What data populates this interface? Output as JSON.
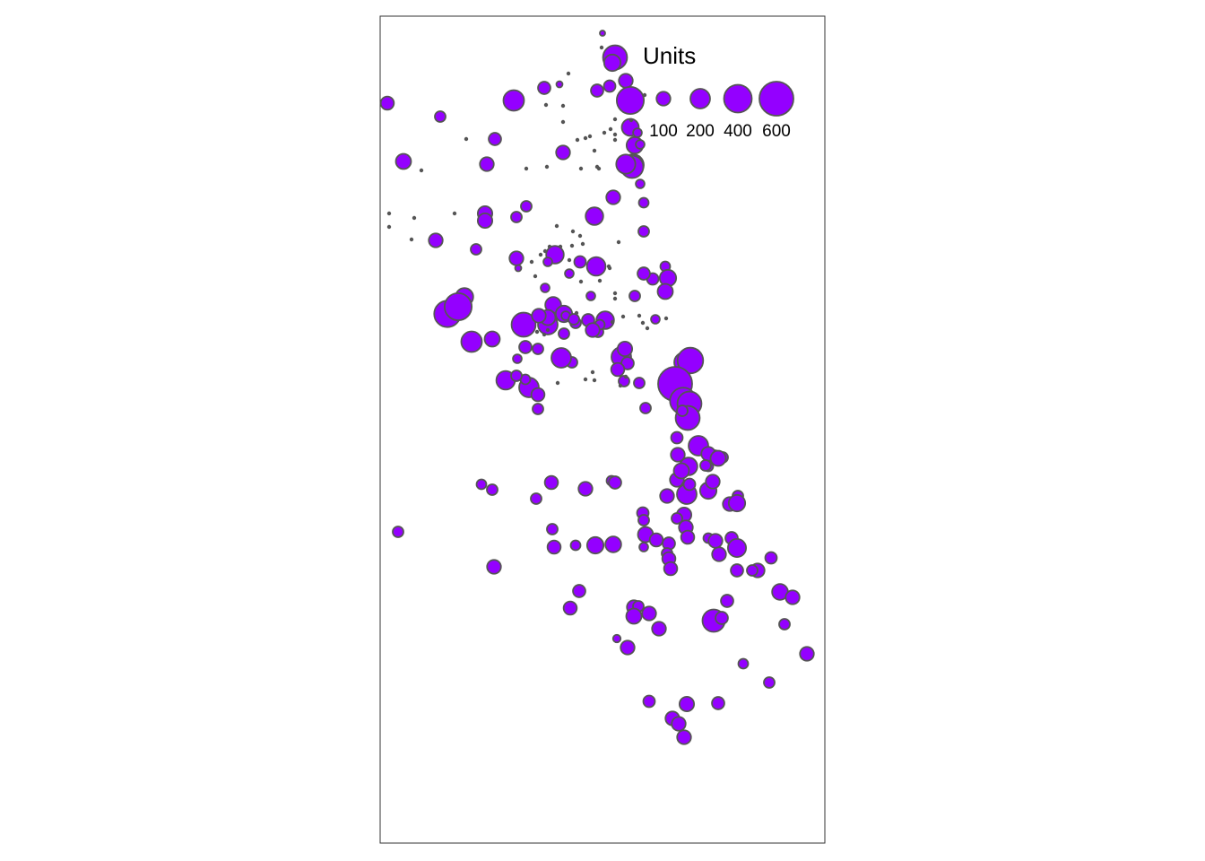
{
  "map": {
    "fill_color": "#9400FF",
    "stroke_color": "#555555",
    "frame_color": "#333333"
  },
  "legend": {
    "title": "Units",
    "entries": [
      {
        "label": "100",
        "value": 100
      },
      {
        "label": "200",
        "value": 200
      },
      {
        "label": "400",
        "value": 400
      },
      {
        "label": "600",
        "value": 600
      }
    ]
  },
  "chart_data": {
    "type": "proportional-symbol",
    "size_variable": "Units",
    "points": [
      {
        "u": 15
      },
      {
        "u": 300
      },
      {
        "u": 140
      },
      {
        "u": 100
      },
      {
        "u": 130
      },
      {
        "u": 5
      },
      {
        "u": 5
      },
      {
        "u": 200
      },
      {
        "u": 80
      },
      {
        "u": 20
      },
      {
        "u": 380
      },
      {
        "u": 150
      },
      {
        "u": 80
      },
      {
        "u": 70
      },
      {
        "u": 5
      },
      {
        "u": 5
      },
      {
        "u": 140
      },
      {
        "u": 40
      },
      {
        "u": 5
      },
      {
        "u": 5
      },
      {
        "u": 5
      },
      {
        "u": 5
      },
      {
        "u": 5
      },
      {
        "u": 240
      },
      {
        "u": 260
      },
      {
        "u": 100
      },
      {
        "u": 190
      },
      {
        "u": 40
      },
      {
        "u": 40
      },
      {
        "u": 90
      },
      {
        "u": 60
      },
      {
        "u": 5
      },
      {
        "u": 5
      },
      {
        "u": 5
      },
      {
        "u": 5
      },
      {
        "u": 220
      },
      {
        "u": 80
      },
      {
        "u": 5
      },
      {
        "u": 100
      },
      {
        "u": 5
      },
      {
        "u": 120
      },
      {
        "u": 5
      },
      {
        "u": 5
      },
      {
        "u": 5
      },
      {
        "u": 5
      },
      {
        "u": 5
      },
      {
        "u": 100
      },
      {
        "u": 5
      },
      {
        "u": 5
      },
      {
        "u": 5
      },
      {
        "u": 110
      },
      {
        "u": 160
      },
      {
        "u": 110
      },
      {
        "u": 100
      },
      {
        "u": 60
      },
      {
        "u": 5
      },
      {
        "u": 5
      },
      {
        "u": 5
      },
      {
        "u": 60
      },
      {
        "u": 50
      },
      {
        "u": 5
      },
      {
        "u": 5
      },
      {
        "u": 60
      },
      {
        "u": 5
      },
      {
        "u": 5
      },
      {
        "u": 5
      },
      {
        "u": 5
      },
      {
        "u": 5
      },
      {
        "u": 60
      },
      {
        "u": 5
      },
      {
        "u": 5
      },
      {
        "u": 5
      },
      {
        "u": 100
      },
      {
        "u": 160
      },
      {
        "u": 180
      },
      {
        "u": 50
      },
      {
        "u": 70
      },
      {
        "u": 80
      },
      {
        "u": 140
      },
      {
        "u": 5
      },
      {
        "u": 5
      },
      {
        "u": 5
      },
      {
        "u": 5
      },
      {
        "u": 5
      },
      {
        "u": 20
      },
      {
        "u": 40
      },
      {
        "u": 5
      },
      {
        "u": 5
      },
      {
        "u": 70
      },
      {
        "u": 5
      },
      {
        "u": 40
      },
      {
        "u": 40
      },
      {
        "u": 120
      },
      {
        "u": 60
      },
      {
        "u": 300
      },
      {
        "u": 200
      },
      {
        "u": 130
      },
      {
        "u": 120
      },
      {
        "u": 100
      },
      {
        "u": 140
      },
      {
        "u": 160
      },
      {
        "u": 80
      },
      {
        "u": 60
      },
      {
        "u": 50
      },
      {
        "u": 5
      },
      {
        "u": 5
      },
      {
        "u": 5
      },
      {
        "u": 40
      },
      {
        "u": 5
      },
      {
        "u": 5
      },
      {
        "u": 40
      },
      {
        "u": 200
      },
      {
        "u": 110
      },
      {
        "u": 80
      },
      {
        "u": 90
      },
      {
        "u": 60
      },
      {
        "u": 60
      },
      {
        "u": 5
      },
      {
        "u": 5
      },
      {
        "u": 5
      },
      {
        "u": 5
      },
      {
        "u": 40
      },
      {
        "u": 5
      },
      {
        "u": 60
      },
      {
        "u": 60
      },
      {
        "u": 100
      },
      {
        "u": 5
      },
      {
        "u": 5
      },
      {
        "u": 5
      },
      {
        "u": 5
      },
      {
        "u": 60
      },
      {
        "u": 200
      },
      {
        "u": 60
      },
      {
        "u": 40
      },
      {
        "u": 5
      },
      {
        "u": 5
      },
      {
        "u": 5
      },
      {
        "u": 220
      },
      {
        "u": 360
      },
      {
        "u": 160
      },
      {
        "u": 380
      },
      {
        "u": 120
      },
      {
        "u": 80
      },
      {
        "u": 5
      },
      {
        "u": 5
      },
      {
        "u": 5
      },
      {
        "u": 60
      },
      {
        "u": 200
      },
      {
        "u": 340
      },
      {
        "u": 600
      },
      {
        "u": 360
      },
      {
        "u": 300
      },
      {
        "u": 300
      },
      {
        "u": 200
      },
      {
        "u": 160
      },
      {
        "u": 100
      },
      {
        "u": 70
      },
      {
        "u": 120
      },
      {
        "u": 80
      },
      {
        "u": 100
      },
      {
        "u": 100
      },
      {
        "u": 50
      },
      {
        "u": 60
      },
      {
        "u": 80
      },
      {
        "u": 70
      },
      {
        "u": 60
      },
      {
        "u": 100
      },
      {
        "u": 200
      },
      {
        "u": 140
      },
      {
        "u": 100
      },
      {
        "u": 120
      },
      {
        "u": 70
      },
      {
        "u": 100
      },
      {
        "u": 60
      },
      {
        "u": 140
      },
      {
        "u": 180
      },
      {
        "u": 200
      },
      {
        "u": 90
      },
      {
        "u": 60
      },
      {
        "u": 50
      },
      {
        "u": 60
      },
      {
        "u": 60
      },
      {
        "u": 60
      },
      {
        "u": 50
      },
      {
        "u": 60
      },
      {
        "u": 90
      },
      {
        "u": 60
      },
      {
        "u": 100
      },
      {
        "u": 50
      },
      {
        "u": 80
      },
      {
        "u": 70
      },
      {
        "u": 60
      },
      {
        "u": 110
      },
      {
        "u": 100
      },
      {
        "u": 90
      },
      {
        "u": 60
      },
      {
        "u": 60
      },
      {
        "u": 60
      },
      {
        "u": 90
      },
      {
        "u": 50
      },
      {
        "u": 140
      },
      {
        "u": 130
      },
      {
        "u": 120
      },
      {
        "u": 40
      },
      {
        "u": 90
      },
      {
        "u": 80
      },
      {
        "u": 60
      },
      {
        "u": 90
      },
      {
        "u": 90
      },
      {
        "u": 50
      },
      {
        "u": 100
      },
      {
        "u": 80
      },
      {
        "u": 170
      },
      {
        "u": 100
      },
      {
        "u": 80
      },
      {
        "u": 100
      },
      {
        "u": 60
      },
      {
        "u": 70
      },
      {
        "u": 100
      },
      {
        "u": 80
      },
      {
        "u": 90
      },
      {
        "u": 100
      },
      {
        "u": 60
      },
      {
        "u": 120
      },
      {
        "u": 100
      },
      {
        "u": 100
      },
      {
        "u": 80
      },
      {
        "u": 260
      },
      {
        "u": 80
      },
      {
        "u": 130
      },
      {
        "u": 100
      },
      {
        "u": 60
      },
      {
        "u": 30
      },
      {
        "u": 100
      },
      {
        "u": 50
      },
      {
        "u": 60
      },
      {
        "u": 40
      },
      {
        "u": 100
      },
      {
        "u": 70
      },
      {
        "u": 110
      },
      {
        "u": 80
      },
      {
        "u": 100
      },
      {
        "u": 100
      },
      {
        "u": 100
      }
    ]
  }
}
